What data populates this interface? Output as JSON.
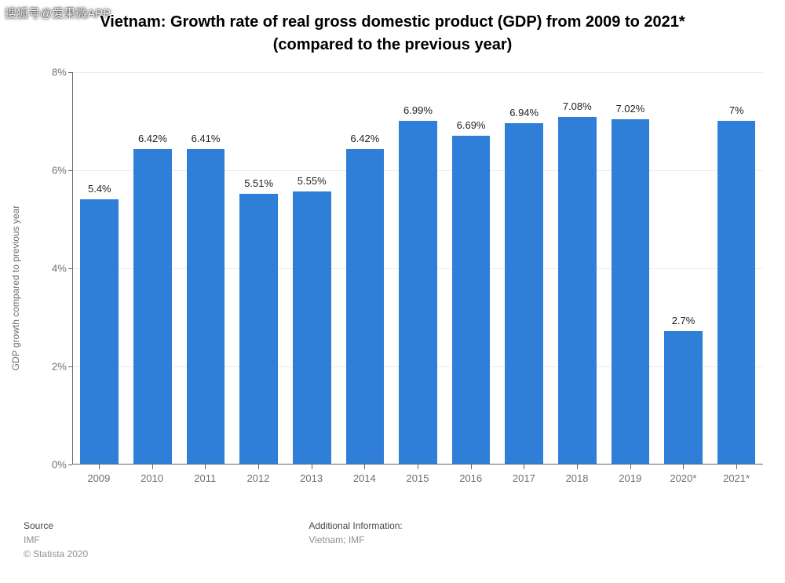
{
  "watermark": "搜狐号@爱果微APP",
  "title_line1": "Vietnam: Growth rate of real gross domestic product (GDP) from 2009 to 2021*",
  "title_line2": "(compared to the previous year)",
  "chart": {
    "type": "bar",
    "y_axis_label": "GDP growth compared to previous year",
    "ylim_min": 0,
    "ylim_max": 8,
    "ytick_step": 2,
    "ytick_format_suffix": "%",
    "bar_color": "#2f7ed8",
    "grid_color": "#ebebeb",
    "axis_color": "#666666",
    "tick_label_color": "#6f6f6f",
    "value_label_color": "#222222",
    "background_color": "#ffffff",
    "value_fontsize": 13,
    "tick_fontsize": 13,
    "y_axis_label_fontsize": 12,
    "title_fontsize": 20,
    "title_fontweight": 700,
    "bar_width_ratio": 0.72,
    "categories": [
      "2009",
      "2010",
      "2011",
      "2012",
      "2013",
      "2014",
      "2015",
      "2016",
      "2017",
      "2018",
      "2019",
      "2020*",
      "2021*"
    ],
    "values": [
      5.4,
      6.42,
      6.41,
      5.51,
      5.55,
      6.42,
      6.99,
      6.69,
      6.94,
      7.08,
      7.02,
      2.7,
      7.0
    ],
    "value_labels": [
      "5.4%",
      "6.42%",
      "6.41%",
      "5.51%",
      "5.55%",
      "6.42%",
      "6.99%",
      "6.69%",
      "6.94%",
      "7.08%",
      "7.02%",
      "2.7%",
      "7%"
    ]
  },
  "footer": {
    "source_heading": "Source",
    "source_line1": "IMF",
    "source_line2": "© Statista 2020",
    "addl_heading": "Additional Information:",
    "addl_line1": "Vietnam; IMF"
  }
}
